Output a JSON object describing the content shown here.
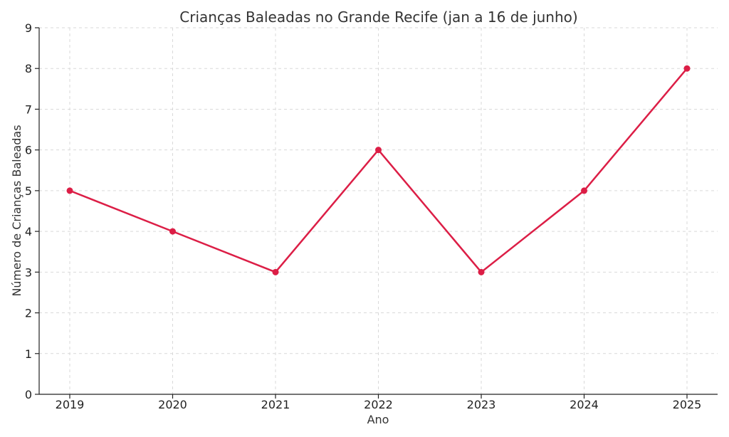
{
  "chart_data": {
    "type": "line",
    "title": "Crianças Baleadas no Grande Recife (jan a 16 de junho)",
    "xlabel": "Ano",
    "ylabel": "Número de Crianças Baleadas",
    "categories": [
      "2019",
      "2020",
      "2021",
      "2022",
      "2023",
      "2024",
      "2025"
    ],
    "yticks": [
      "0",
      "1",
      "2",
      "3",
      "4",
      "5",
      "6",
      "7",
      "8",
      "9"
    ],
    "ylim": [
      0,
      9
    ],
    "grid": true,
    "series": [
      {
        "values": [
          5,
          4,
          3,
          6,
          3,
          5,
          8
        ],
        "color": "#dc1e46"
      }
    ]
  }
}
